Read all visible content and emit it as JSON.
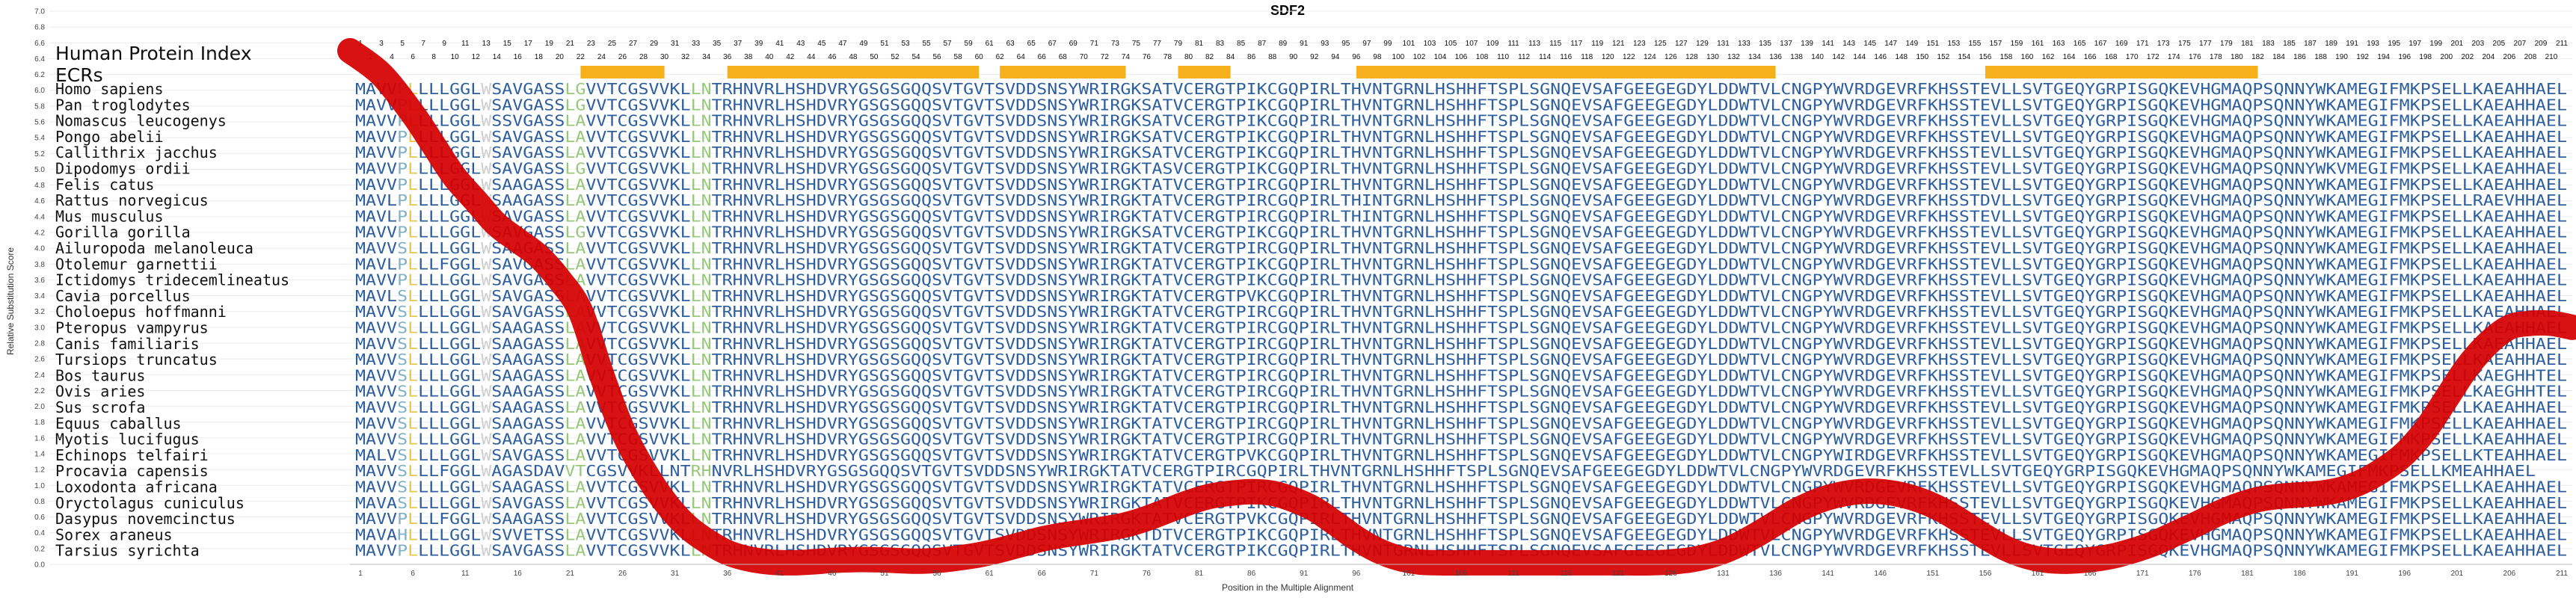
{
  "chart_data": {
    "type": "line",
    "title": "SDF2",
    "xlabel": "Position in the Multiple Alignment",
    "ylabel": "Relative Substitution Score",
    "ylim": [
      0.0,
      7.0
    ],
    "yticks": [
      "0.0",
      "0.2",
      "0.4",
      "0.6",
      "0.8",
      "1.0",
      "1.2",
      "1.4",
      "1.6",
      "1.8",
      "2.0",
      "2.2",
      "2.4",
      "2.6",
      "2.8",
      "3.0",
      "3.2",
      "3.4",
      "3.6",
      "3.8",
      "4.0",
      "4.2",
      "4.4",
      "4.6",
      "4.8",
      "5.0",
      "5.2",
      "5.4",
      "5.6",
      "5.8",
      "6.0",
      "6.2",
      "6.4",
      "6.6",
      "6.8",
      "7.0"
    ],
    "xlim": [
      0,
      212
    ],
    "xticks": [
      "1",
      "6",
      "11",
      "16",
      "21",
      "26",
      "31",
      "36",
      "41",
      "46",
      "51",
      "56",
      "61",
      "66",
      "71",
      "76",
      "81",
      "86",
      "91",
      "96",
      "101",
      "106",
      "111",
      "116",
      "121",
      "126",
      "131",
      "136",
      "141",
      "146",
      "151",
      "156",
      "161",
      "166",
      "171",
      "176",
      "181",
      "186",
      "191",
      "196",
      "201",
      "206",
      "211"
    ],
    "human_index_label": "Human Protein Index",
    "ecrs_label": "ECRs",
    "human_index_start": 1,
    "human_index_end": 211,
    "ecr_color": "#f6b01c",
    "line_color": "#d50000",
    "ecrs": [
      [
        22,
        30
      ],
      [
        36,
        60
      ],
      [
        62,
        74
      ],
      [
        79,
        84
      ],
      [
        96,
        136
      ],
      [
        156,
        182
      ]
    ],
    "series": [
      {
        "x": [
          0,
          3,
          6,
          8,
          10,
          12,
          14,
          16,
          18,
          20,
          22,
          24,
          26,
          28,
          30,
          32,
          34,
          36,
          38,
          40,
          42,
          44,
          46,
          48,
          50,
          52,
          54,
          56,
          58,
          60,
          62,
          64,
          66,
          68,
          70,
          72,
          74,
          76,
          78,
          80,
          82,
          84,
          86,
          88,
          90,
          92,
          94,
          96,
          98,
          100,
          102,
          104,
          106,
          108,
          110,
          112,
          114,
          116,
          118,
          120,
          122,
          124,
          126,
          128,
          130,
          132,
          134,
          136,
          138,
          140,
          142,
          144,
          146,
          148,
          150,
          152,
          154,
          156,
          158,
          160,
          162,
          164,
          166,
          168,
          170,
          172,
          174,
          176,
          178,
          180,
          182,
          184,
          186,
          188,
          190,
          192,
          194,
          196,
          198,
          200,
          202,
          204,
          206,
          208,
          210,
          212
        ],
        "values": [
          6.5,
          6.2,
          5.7,
          5.3,
          4.9,
          4.6,
          4.3,
          4.1,
          3.9,
          3.6,
          3.2,
          2.4,
          1.7,
          1.2,
          0.8,
          0.5,
          0.3,
          0.15,
          0.07,
          0.03,
          0.02,
          0.03,
          0.05,
          0.06,
          0.06,
          0.05,
          0.04,
          0.05,
          0.08,
          0.12,
          0.18,
          0.25,
          0.32,
          0.37,
          0.41,
          0.45,
          0.5,
          0.58,
          0.68,
          0.78,
          0.86,
          0.9,
          0.92,
          0.9,
          0.82,
          0.7,
          0.52,
          0.33,
          0.18,
          0.08,
          0.03,
          0.02,
          0.02,
          0.02,
          0.02,
          0.02,
          0.02,
          0.02,
          0.02,
          0.02,
          0.02,
          0.02,
          0.03,
          0.06,
          0.12,
          0.22,
          0.36,
          0.52,
          0.68,
          0.8,
          0.88,
          0.92,
          0.92,
          0.88,
          0.8,
          0.68,
          0.52,
          0.35,
          0.2,
          0.1,
          0.05,
          0.04,
          0.06,
          0.1,
          0.17,
          0.26,
          0.38,
          0.5,
          0.63,
          0.74,
          0.82,
          0.86,
          0.88,
          0.9,
          0.95,
          1.05,
          1.2,
          1.4,
          1.7,
          2.1,
          2.5,
          2.8,
          3.0,
          3.05,
          3.05,
          3.0
        ]
      }
    ],
    "species": [
      "Homo sapiens",
      "Pan troglodytes",
      "Nomascus leucogenys",
      "Pongo abelii",
      "Callithrix jacchus",
      "Dipodomys ordii",
      "Felis catus",
      "Rattus norvegicus",
      "Mus musculus",
      "Gorilla gorilla",
      "Ailuropoda melanoleuca",
      "Otolemur garnettii",
      "Ictidomys tridecemlineatus",
      "Cavia porcellus",
      "Choloepus hoffmanni",
      "Pteropus vampyrus",
      "Canis familiaris",
      "Tursiops truncatus",
      "Bos taurus",
      "Ovis aries",
      "Sus scrofa",
      "Equus caballus",
      "Myotis lucifugus",
      "Echinops telfairi",
      "Procavia capensis",
      "Loxodonta africana",
      "Oryctolagus cuniculus",
      "Dasypus novemcinctus",
      "Sorex araneus",
      "Tarsius syrichta"
    ],
    "sequences": [
      "MAVVPLLLLGGLWSAVGASSLGVVTCGSVVKLLNTRHNVRLHSHDVRYGSGSGQQSVTGVTSVDDSNSYWRIRGKSATVCERGTPIKCGQPIRLTHVNTGRNLHSHHFTSPLSGNQEVSAFGEEGEGDYLDDWTVLCNGPYWVRDGEVRFKHSSTEVLLSVTGEQYGRPISGQKEVHGMAQPSQNNYWKAMEGIFMKPSELLKAEAHHAEL",
      "MAVVPLLLLGGLWSAVGASSLGVVTCGSVVKLLNTRHNVRLHSHDVRYGSGSGQQSVTGVTSVDDSNSYWRIRGKSATVCERGTPIKCGQPIRLTHVNTGRNLHSHHFTSPLSGNQEVSAFGEEGEGDYLDDWTVLCNGPYWVRDGEVRFKHSSTEVLLSVTGEQYGRPISGQKEVHGMAQPSQNNYWKAMEGIFMKPSELLKAEAHHAEL",
      "MAVVPLLLLGGLWSSVGASSLAVVTCGSVVKLLNTRHNVRLHSHDVRYGSGSGQQSVTGVTSVDDSNSYWRIRGKSATVCERGTPIKCGQPIRLTHVNTGRNLHSHHFTSPLSGNQEVSAFGEEGEGDYLDDWTVLCNGPYWVRDGEVRFKHSSTEVLLSVTGEQYGRPISGQKEVHGMAQPSQNNYWKAMEGIFMKPSELLKAEAHHAEL",
      "MAVVPLLLLGGLWSAVGASSLAVVTCGSVVKLLNTRHNVRLHSHDVRYGSGSGQQSVTGVTSVDDSNSYWRIRGKSATVCERGTPIKCGQPIRLTHVNTGRNLHSHHFTSPLSGNQEVSAFGEEGEGDYLDDWTVLCNGPYWVRDGEVRFKHSSTEVLLSVTGEQYGRPISGQKEVHGMAQPSQNNYWKAMEGIFMKPSELLKAEAHHAEL",
      "MAVVPLLLLGGLWSAVGASSLAVVTCGSVVKLLNTRHNVRLHSHDVRYGSGSGQQSVTGVTSVDDSNSYWRIRGKSATVCERGTPIKCGQPIRLTHVNTGRNLHSHHFTSPLSGNQEVSAFGEEGEGDYLDDWTVLCNGPYWVRDGEVRFKHSSTEVLLSVTGEQYGRPISGQKEVHGMAQPSQNNYWKAMEGIFMKPSELLKAEAHHAEL",
      "MAVVPLLLLGGLWSAVGASSLGVVTCGSVVKLLNTRHNVRLHSHDVRYGSGSGQQSVTGVTSVDDSNSYWRIRGKTASVCERGTPIKCGQPIRLTHVNTGRNLHSHHFTSPLSGNQEVSAFGEEGEGDYLDDWTVLCNGPYWVRDGEVRFKHSSTEVLLSVTGEQYGRPISGQKEVHGMAQPSQNNYWKVMEGIFMKPSELLKAEAHHAEL",
      "MAVVPLLLLGGLWSAAGASSLAVVTCGSVVKLLNTRHNVRLHSHDVRYGSGSGQQSVTGVTSVDDSNSYWRIRGKTATVCERGTPIRCGQPIRLTHVNTGRNLHSHHFTSPLSGNQEVSAFGEEGEGDYLDDWTVLCNGPYWVRDGEVRFKHSSTEVLLSVTGEQYGRPISGQKEVHGMAQPSQNNYWKAMEGIFMKPSELLKAEAHHAEL",
      "MAVLPLLLLGGLWSAAGASSLAVVTCGSVVKLLNTRHNVRLHSHDVRYGSGSGQQSVTGVTSVDDSNSYWRIRGKTATVCERGTPIRCGQPIRLTHINTGRNLHSHHFTSPLSGNQEVSAFGEEGEGDYLDDWTVLCNGPYWVRDGEVRFKHSSTDVLLSVTGEQYGRPISGQKEVHGMAQPSQNNYWKAMEGIFMKPSELLRAEVHHAEL",
      "MAVLPLLLLGGLWSAVGASSLAVVTCGSVVKLLNTRHNVRLHSHDVRYGSGSGQQSVTGVTSVDDSNSYWRIRGKTATVCERGTPIRCGQPIRLTHINTGRNLHSHHFTSPLSGNQEVSAFGEEGEGDYLDDWTVLCNGPYWVRDGEVRFKHSSTEVLLSVTGEQYGRPISGQKEVHGMAQPSQNNYWKAMEGIFMKPSELLKAEAHHAEL",
      "MAVVPLLLLGGLWSAVGASSLGVVTCGSVVKLLNTRHNVRLHSHDVRYGSGSGQQSVTGVTSVDDSNSYWRIRGKSATVCERGTPIKCGQPIRLTHVNTGRNLHSHHFTSPLSGNQEVSAFGEEGEGDYLDDWTVLCNGPYWVRDGEVRFKHSSTEVLLSVTGEQYGRPISGQKEVHGMAQPSQNNYWKAMEGIFMKPSELLKAEAHHAEL",
      "MAVVSLLLLGGLWSAAGASSLAVVTCGSVVKLLNTRHNVRLHSHDVRYGSGSGQQSVTGVTSVDDSNSYWRIRGKTATVCERGTPIRCGQPIRLTHVNTGRNLHSHHFTSPLSGNQEVSAFGEEGEGDYLDDWTVLCNGPYWVRDGEVRFKHSSTEVLLSVTGEQYGRPISGQKEVHGMAQPSQNNYWKAMEGIFMKPSELLKAEAHHAEL",
      "MAVLPLLLFGGLWSAVGASSLAVVTCGSVVKLLNTRHNVRLHSHDVRYGSGSGQQSVTGVTSVDDSNSYWRIRGKTATVCERGTPIKCGQPIRLTHVNTGRNLHSHHFTSPLSGNQEVSAFGEEGEGDYLDDWTVLCNGPYWVRDGEVRFKHSSTEVLLSVTGEQYGRPISGQKEVHGMAQPSQNNYWKAMEGIFMKPSELLKAEAHHAEL",
      "MAVVPLLLLGGLWSAVGASSLAVVTCGSVVKLLNTRHNVRLHSHDVRYGSGSGQQSVTGVTSVDDSNSYWRIRGKTATVCERGTPIKCGQPIRLTHVNTGRNLHSHHFTSPLSGNQEVSAFGEEGEGDYLDDWTVLCNGPYWVRDGEVRFKHSSTEVLLSVTGEQYGRPISGQKEVHGMAQPSQNNYWKAMEGIFMKPSELLKAEAHHAEL",
      "MAVLSLLLLGGLWSAVGASSLAVVTCGSVVKLLNTRHNVRLHSHDVRYGSGSGQQSVTGVTSVDDSNSYWRIRGKTATVCERGTPVKCGQPIRLTHVNTGRNLHSHHFTSPLSGNQEVSAFGEEGEGDYLDDWTVLCNGPYWVRDGEVRFKHSSTEVLLSVTGEQYGRPISGQKEVHGMAQPSQNNYWKAMEGIFMKPSELLKAEAHHAEL",
      "MAVVSLLLLGGLWSAVGASSLAVVTCGSVVKLLNTRHNVRLHSHDVRYGSGSGQQSVTGVTSVDDSNSYWRIRGKTATVCERGTPIRCGQPIRLTHVNTGRNLHSHHFTSPLSGNQEVSAFGEEGEGDYLDDWTVLCNGPYWVRDGEVRFKHSSTEVLLSVTGEQYGRPISGQKEVHGMAQPSQNNYWKAMEGIFMKPSELLKAEAHHAEL",
      "MAVVSLLLLGGLWSAAGASSLAVVTCGSVVKLLNTRHNVRLHSHDVRYGSGSGQQSVTGVTSVDDSNSYWRIRGKTATVCERGTPIRCGQPIRLTHVNTGRNLHSHHFTSPLSGNQEVSAFGEEGEGDYLDDWTVLCNGPYWVRDGEVRFKHSSTEVLLSVTGEQYGRPISGQKEVHGMAQPSQNNYWKAMEGIFMKPSELLKAEAHHAEL",
      "MAVVSLLLLGGLWSAAGASSLAVVTCGSVVKLLNTRHNVRLHSHDVRYGSGSGQQSVTGVTSVDDSNSYWRIRGKTATVCERGTPIRCGQPIRLTHVNTGRNLHSHHFTSPLSGNQEVSAFGEEGEGDYLDDWTVLCNGPYWVRDGEVRFKHSSTEVLLSVTGEQYGRPISGQKEVHGMAQPSQNNYWKAMEGIFMKPSELLKAEAHHAEL",
      "MAVVSLLLLGGLWSAAGASSLAVVTCGSVVKLLNTRHNVRLHSHDVRYGSGSGQQSVTGVTSVDDSNSYWRIRGKTATVCERGTPIRCGQPIRLTHVNTGRNLHSHHFTSPLSGNQEVSAFGEEGEGDYLDDWTVLCNGPYWVRDGEVRFKHSSTEVLLSVTGEQYGRPISGQKEVHGMAQPSQNNYWKAMEGIFMKPSELLKAEAHHAEL",
      "MAVVSLLLLGGLWSAAGASSLAVVTCGSVVKLLNTRHNVRLHSHDVRYGSGSGQQSVTGVTSVDDSNSYWRIRGKTATVCERGTPIRCGQPIRLTHVNTGRNLHSHHFTSPLSGNQEVSAFGEEGEGDYLDDWTVLCNGPYWVRDGEVRFKHSSTEVLLSVTGEQYGRPISGQKEVHGMAQPSQNNYWKAMEGIFMKPSELLKAEGHHTEL",
      "MAVVSLLLLGGLWSAAGASSLAVVTCGSVVKLLNTRHNVRLHSHDVRYGSGSGQQSVTGVTSVDDSNSYWRIRGKTATVCERGTPIRCGQPIRLTHVNTGRNLHSHHFTSPLSGNQEVSAFGEEGEGDYLDDWTVLCNGPYWVRDGEVRFKHSSTEVLLSVTGEQYGRPISGQKEVHGMAQPSQNNYWKAMEGIFMKPSELLKAEGHHTEL",
      "MAVVSLLLLGGLWSAAGASSLAVVTCGSVVKLLNTRHNVRLHSHDVRYGSGSGQQSVTGVTSVDDSNSYWRIRGKTATVCERGTPIRCGQPIRLTHVNTGRNLHSHHFTSPLSGNQEVSAFGEEGEGDYLDDWTVLCNGPYWVRDGEVRFKHSSTEVLLSVTGEQYGRPISGQKEVHGMAQPSQNNYWKAMEGIFMKPSELLKAEAHHAEL",
      "MAVVSLLLLGGLWSAAGASSLAVVTCGSVVKLLNTRHNVRLHSHDVRYGSGSGQQSVTGVTSVDDSNSYWRIRGKTATVCERGTPIRCGQPIRLTHVNTGRNLHSHHFTSPLSGNQEVSAFGEEGEGDYLDDWTVLCNGPYWVRDGEVRFKHSSTEVLLSVTGEQYGRPISGQKEVHGMAQPSQNNYWKAMEGIFMKPSELLKAEAHHAEL",
      "MAVVSLLLLGGLWSAAGASSLAVVTCGSVVKLLNTRHNVRLHSHDVRYGSGSGQQSVTGVTSVDDSNSYWRIRGKTATVCERGTPIRCGQPIRLTHVNTGRNLHSHHFTSPLSGNQEVSAFGEEGEGDYLDDWTVLCNGPYWVRDGEVRFKHSSTEVLLSVTGEQYGRPISGQKEVHGMAQPSQNNYWKAMEGIFMKPSELLKAEAHHAEL",
      "MALVSLLLLGGLWSAVGASSLAVVTCGSVVKLLNTRHNVRLHSHDVRYGSGSGQQSVTGVTSVDDSNSYWRIRGKTATVCERGTPVKCGQPIRLTHVNTGRNLHSHHFTSPLSGNQEVSAFGEEGEGDYLDDWTVLCNGPYWIRDGEVRFKHSSTEVLLSVTGEQYGRPISGQKEVHGMAQPSQNNYWKAMEGIFMKPSELLKTEAHHAEL",
      "MAVVSLLLFGGLWAGASDAVVTCGSVVKLLNTRHNVRLHSHDVRYGSGSGQQSVTGVTSVDDSNSYWRIRGKTATVCERGTPIRCGQPIRLTHVNTGRNLHSHHFTSPLSGNQEVSAFGEEGEGDYLDDWTVLCNGPYWVRDGEVRFKHSSTEVLLSVTGEQYGRPISGQKEVHGMAQPSQNNYWKAMEGIFMKPSELLKMEAHHAEL",
      "MAVVSLLLLGGLWSAAGASSLAVVTCGSVVKLLNTRHNVRLHSHDVRYGSGSGQQSVTGVTSVDDSNSYWRIRGKTATVCERGTPIRCGQPIRLTHVNTGRNLHSHHFTSPLSGNQEVSAFGEEGEGDYLDDWTVLCNGPYWVRDGEVRFKHSSTEVLLSVTGEQYGRPISGQKEVHGMAQPSQNNYWKAMEGIFMKPSELLKAEAHHAEL",
      "MAVASLLLLGGLWSAVGASSLAVVTCGSVVKLLNTRHNVRLHSHDVRYGSGSGQQSVTGVTSVDDSNSYWRIRGKTATVCERGTPIKCGQPIRLTHVNTGRNLHSHHFTSPLSGNQEVSAFGEEGEGDYLDDWTVLCNGPYWVRDGEVRFKHSSTEVLLSVTGEQYGRPISGQKEVHGMAQPSQNNYWKAMEGIFMKPSELLKAEAHHAEL",
      "MAVVPLLLFGGLWSAAGASSLAVVTCGSVVKLLNTRHNVRLHSHDVRYGSGSGQQSVTGVTSVDDSNSYWRIRGKTATVCERGTPVKCGQPIRLTHVNTGRNLHSHHFTSPLSGNQEVSAFGEEGEGDYLDDWTVLCNGPYWVRDGEVRFKHSSTEVLLSVTGEQYGRPISGQKEVHGMAQPSQNNYWKAMEGIFMKPSELLKAEAHHAEL",
      "MAVAHLLLLGGLWSVVETSSLAVVTCGSVVKLLNTRHNVRLHSHDVRYGSGSGQQSVTGVTSVDDSNSYWRIRGKTDTVCERGTPIKCGQPIRLTHVNTGRNLHSHHFTSPLSGNQEVSAFGEEGEGDYLDDWTVLCNGPYWVRDGEVRFKHSSTEVLLSVTGEQYGRPISGQKEVHGMAQPSQNNYWKAMEGIFMKPSELLKAEAHHAEL",
      "MAVVPLLLLGGLWSAVGASSLAVVTCGSVVKLLNTRHNVRLHSHDVRYGSGSGQQSVTGVTSVDDSNSYWRIRGKTATVCERGTPIKCGQPIRLTHVNTGRNLHSHHFTSPLSGNQEVSAFGEEGEGDYLDDWTVLCNGPYWVRDGEVRFKHSSTEVLLSVTGEQYGRPISGQKEVHGMAQPSQNNYWKAMEGIFMKPSELLKAEAHHAEL"
    ]
  }
}
